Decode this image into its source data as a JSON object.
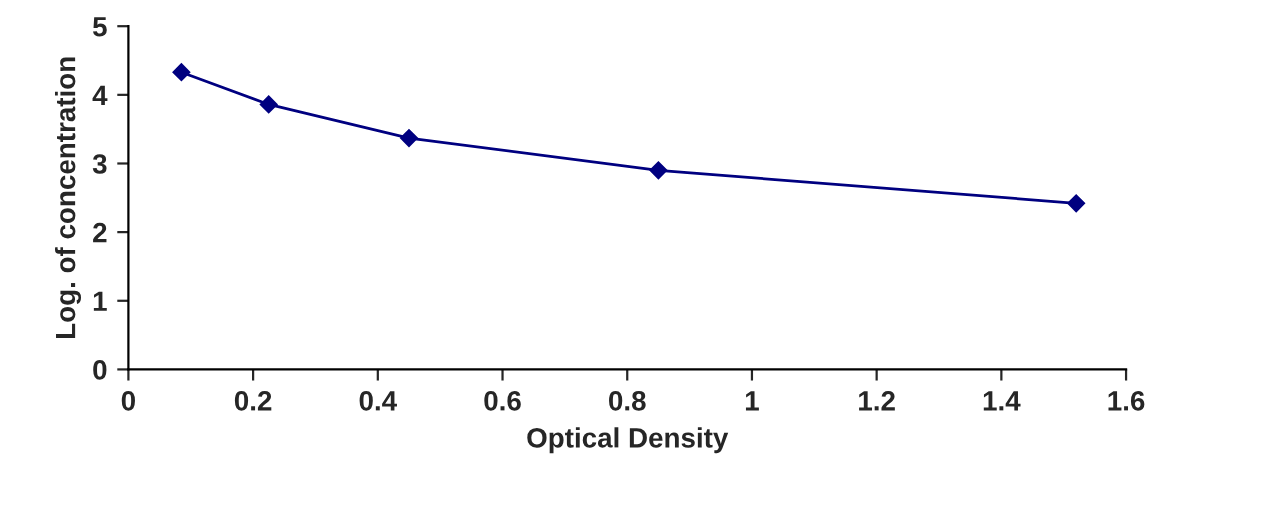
{
  "chart_data": {
    "type": "line",
    "xlabel": "Optical Density",
    "ylabel": "Log. of concentration",
    "series": [
      {
        "color": "#000080",
        "x": [
          0.085,
          0.225,
          0.45,
          0.85,
          1.52
        ],
        "values": [
          4.33,
          3.86,
          3.37,
          2.9,
          2.42
        ]
      }
    ],
    "xlim": [
      0,
      1.6
    ],
    "xticks": [
      0,
      0.2,
      0.4,
      0.6,
      0.8,
      1,
      1.2,
      1.4,
      1.6
    ],
    "ylim": [
      0,
      5
    ],
    "yticks": [
      0,
      1,
      2,
      3,
      4,
      5
    ],
    "grid": false,
    "legend": false,
    "marker": "diamond",
    "line_style": "solid"
  }
}
